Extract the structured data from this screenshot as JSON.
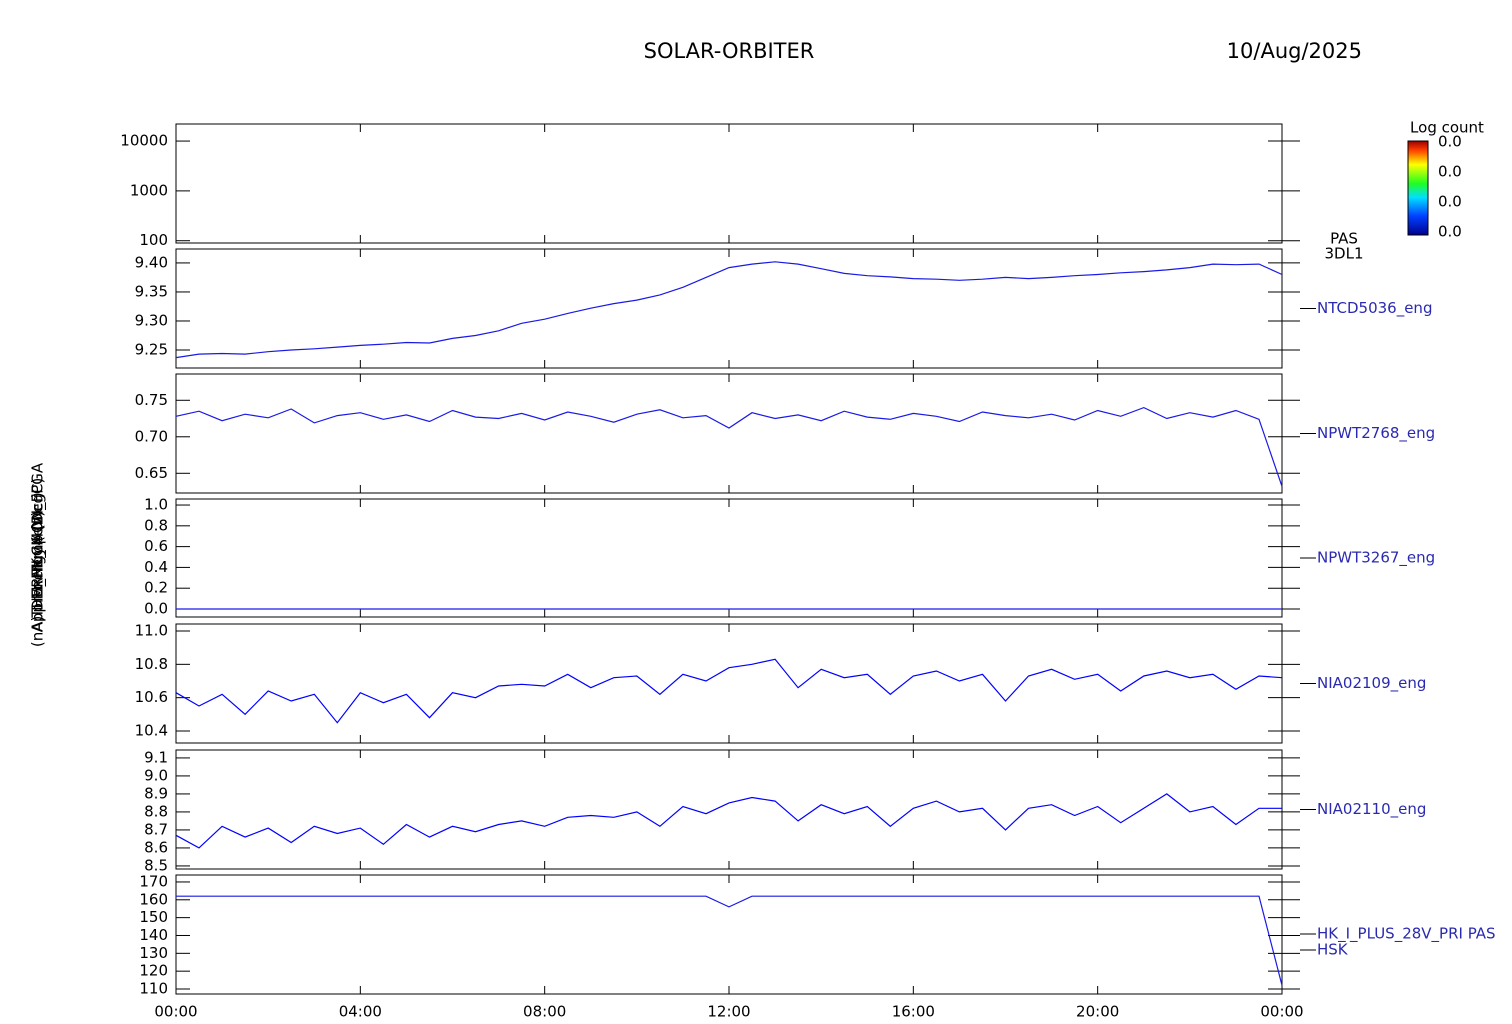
{
  "title": "SOLAR-ORBITER",
  "date": "10/Aug/2025",
  "chart_data": [
    {
      "type": "spectrogram",
      "log_y": true,
      "ylim": [
        90,
        22000
      ],
      "yticks": [
        100,
        1000,
        10000
      ],
      "ylabel": "Energy (eV)",
      "labels": [
        "PAS",
        "3DL1"
      ],
      "colorbar": {
        "label": "Log count",
        "ticks": [
          "0.0",
          "0.0",
          "0.0",
          "0.0"
        ]
      }
    },
    {
      "type": "line",
      "ylim": [
        9.219,
        9.424
      ],
      "ylabel": "Approx Temp (DegC)",
      "yticks": [
        9.25,
        {
          "value": 9.3,
          "label": "9.30"
        },
        9.35,
        {
          "value": 9.4,
          "label": "9.40"
        }
      ],
      "x": [
        0,
        0.5,
        1,
        1.5,
        2,
        2.5,
        3,
        3.5,
        4,
        4.5,
        5,
        5.5,
        6,
        6.5,
        7,
        7.5,
        8,
        8.5,
        9,
        9.5,
        10,
        10.5,
        11,
        11.5,
        12,
        12.5,
        13,
        13.5,
        14,
        14.5,
        15,
        15.5,
        16,
        16.5,
        17,
        17.5,
        18,
        18.5,
        19,
        19.5,
        20,
        20.5,
        21,
        21.5,
        22,
        22.5,
        23,
        23.5,
        24
      ],
      "series": [
        {
          "name": "NTCD5036_eng",
          "color": "#1a1ae6",
          "values": [
            9.237,
            9.243,
            9.244,
            9.243,
            9.247,
            9.25,
            9.252,
            9.255,
            9.258,
            9.26,
            9.263,
            9.262,
            9.27,
            9.275,
            9.283,
            9.296,
            9.303,
            9.313,
            9.322,
            9.33,
            9.336,
            9.345,
            9.358,
            9.375,
            9.392,
            9.398,
            9.402,
            9.398,
            9.39,
            9.382,
            9.378,
            9.376,
            9.373,
            9.372,
            9.37,
            9.372,
            9.375,
            9.373,
            9.375,
            9.378,
            9.38,
            9.383,
            9.385,
            9.388,
            9.392,
            9.398,
            9.397,
            9.398,
            9.38
          ]
        }
      ]
    },
    {
      "type": "line",
      "ylim": [
        0.623,
        0.786
      ],
      "yticks": [
        0.65,
        {
          "value": 0.7,
          "label": "0.70"
        },
        0.75
      ],
      "x": [
        0,
        0.5,
        1,
        1.5,
        2,
        2.5,
        3,
        3.5,
        4,
        4.5,
        5,
        5.5,
        6,
        6.5,
        7,
        7.5,
        8,
        8.5,
        9,
        9.5,
        10,
        10.5,
        11,
        11.5,
        12,
        12.5,
        13,
        13.5,
        14,
        14.5,
        15,
        15.5,
        16,
        16.5,
        17,
        17.5,
        18,
        18.5,
        19,
        19.5,
        20,
        20.5,
        21,
        21.5,
        22,
        22.5,
        23,
        23.5,
        24
      ],
      "series": [
        {
          "name": "NPWT2768_eng",
          "color": "#1a1ae6",
          "values": [
            0.728,
            0.735,
            0.722,
            0.731,
            0.726,
            0.738,
            0.719,
            0.729,
            0.733,
            0.724,
            0.73,
            0.721,
            0.736,
            0.727,
            0.725,
            0.732,
            0.723,
            0.734,
            0.728,
            0.72,
            0.731,
            0.737,
            0.726,
            0.729,
            0.712,
            0.733,
            0.725,
            0.73,
            0.722,
            0.735,
            0.727,
            0.724,
            0.732,
            0.728,
            0.721,
            0.734,
            0.729,
            0.726,
            0.731,
            0.723,
            0.736,
            0.728,
            0.74,
            0.725,
            0.733,
            0.727,
            0.736,
            0.724,
            0.632
          ]
        }
      ]
    },
    {
      "type": "line",
      "ylim": [
        -0.077,
        1.058
      ],
      "yticks": [
        {
          "value": 0,
          "label": "0.0"
        },
        0.2,
        0.4,
        0.6,
        0.8,
        {
          "value": 1,
          "label": "1.0"
        }
      ],
      "x": [
        0,
        0.5,
        1,
        1.5,
        2,
        2.5,
        3,
        3.5,
        4,
        4.5,
        5,
        5.5,
        6,
        6.5,
        7,
        7.5,
        8,
        8.5,
        9,
        9.5,
        10,
        10.5,
        11,
        11.5,
        12,
        12.5,
        13,
        13.5,
        14,
        14.5,
        15,
        15.5,
        16,
        16.5,
        17,
        17.5,
        18,
        18.5,
        19,
        19.5,
        20,
        20.5,
        21,
        21.5,
        22,
        22.5,
        23,
        23.5,
        24
      ],
      "series": [
        {
          "name": "NPWT3267_eng",
          "color": "#1a1ae6",
          "values": [
            0,
            0,
            0,
            0,
            0,
            0,
            0,
            0,
            0,
            0,
            0,
            0,
            0,
            0,
            0,
            0,
            0,
            0,
            0,
            0,
            0,
            0,
            0,
            0,
            0,
            0,
            0,
            0,
            0,
            0,
            0,
            0,
            0,
            0,
            0,
            0,
            0,
            0,
            0,
            0,
            0,
            0,
            0,
            0,
            0,
            0,
            0,
            0,
            0
          ]
        }
      ]
    },
    {
      "type": "line",
      "ylim": [
        10.328,
        11.042
      ],
      "ylabel": "THERMLC4 (n.c.)",
      "yticks": [
        10.4,
        10.6,
        10.8,
        {
          "value": 11,
          "label": "11.0"
        }
      ],
      "x": [
        0,
        0.5,
        1,
        1.5,
        2,
        2.5,
        3,
        3.5,
        4,
        4.5,
        5,
        5.5,
        6,
        6.5,
        7,
        7.5,
        8,
        8.5,
        9,
        9.5,
        10,
        10.5,
        11,
        11.5,
        12,
        12.5,
        13,
        13.5,
        14,
        14.5,
        15,
        15.5,
        16,
        16.5,
        17,
        17.5,
        18,
        18.5,
        19,
        19.5,
        20,
        20.5,
        21,
        21.5,
        22,
        22.5,
        23,
        23.5,
        24
      ],
      "series": [
        {
          "name": "NIA02109_eng",
          "color": "#0000ff",
          "values": [
            10.63,
            10.55,
            10.62,
            10.5,
            10.64,
            10.58,
            10.62,
            10.45,
            10.63,
            10.57,
            10.62,
            10.48,
            10.63,
            10.6,
            10.67,
            10.68,
            10.67,
            10.74,
            10.66,
            10.72,
            10.73,
            10.62,
            10.74,
            10.7,
            10.78,
            10.8,
            10.83,
            10.66,
            10.77,
            10.72,
            10.74,
            10.62,
            10.73,
            10.76,
            10.7,
            10.74,
            10.58,
            10.73,
            10.77,
            10.71,
            10.74,
            10.64,
            10.73,
            10.76,
            10.72,
            10.74,
            10.65,
            10.73,
            10.72
          ]
        }
      ]
    },
    {
      "type": "line",
      "ylim": [
        8.483,
        9.144
      ],
      "yticks": [
        8.5,
        8.6,
        8.7,
        8.8,
        8.9,
        {
          "value": 9,
          "label": "9.0"
        },
        9.1
      ],
      "x": [
        0,
        0.5,
        1,
        1.5,
        2,
        2.5,
        3,
        3.5,
        4,
        4.5,
        5,
        5.5,
        6,
        6.5,
        7,
        7.5,
        8,
        8.5,
        9,
        9.5,
        10,
        10.5,
        11,
        11.5,
        12,
        12.5,
        13,
        13.5,
        14,
        14.5,
        15,
        15.5,
        16,
        16.5,
        17,
        17.5,
        18,
        18.5,
        19,
        19.5,
        20,
        20.5,
        21,
        21.5,
        22,
        22.5,
        23,
        23.5,
        24
      ],
      "series": [
        {
          "name": "NIA02110_eng",
          "color": "#0000ff",
          "values": [
            8.67,
            8.6,
            8.72,
            8.66,
            8.71,
            8.63,
            8.72,
            8.68,
            8.71,
            8.62,
            8.73,
            8.66,
            8.72,
            8.69,
            8.73,
            8.75,
            8.72,
            8.77,
            8.78,
            8.77,
            8.8,
            8.72,
            8.83,
            8.79,
            8.85,
            8.88,
            8.86,
            8.75,
            8.84,
            8.79,
            8.83,
            8.72,
            8.82,
            8.86,
            8.8,
            8.82,
            8.7,
            8.82,
            8.84,
            8.78,
            8.83,
            8.74,
            8.82,
            8.9,
            8.8,
            8.83,
            8.73,
            8.82,
            8.82
          ]
        }
      ]
    },
    {
      "type": "line",
      "ylim": [
        107.2,
        173.9
      ],
      "ylabel": "(nA) DM_HK_IMON_FPGA",
      "yticks": [
        110,
        120,
        130,
        140,
        150,
        160,
        170
      ],
      "labels": [
        "HSK"
      ],
      "xlim": [
        0,
        24
      ],
      "xticks": [
        {
          "value": 0,
          "label": "00:00"
        },
        {
          "value": 4,
          "label": "04:00"
        },
        {
          "value": 8,
          "label": "08:00"
        },
        {
          "value": 12,
          "label": "12:00"
        },
        {
          "value": 16,
          "label": "16:00"
        },
        {
          "value": 20,
          "label": "20:00"
        },
        {
          "value": 24,
          "label": "00:00"
        }
      ],
      "x": [
        0,
        0.5,
        1,
        1.5,
        2,
        2.5,
        3,
        3.5,
        4,
        4.5,
        5,
        5.5,
        6,
        6.5,
        7,
        7.5,
        8,
        8.5,
        9,
        9.5,
        10,
        10.5,
        11,
        11.5,
        12,
        12.5,
        13,
        13.5,
        14,
        14.5,
        15,
        15.5,
        16,
        16.5,
        17,
        17.5,
        18,
        18.5,
        19,
        19.5,
        20,
        20.5,
        21,
        21.5,
        22,
        22.5,
        23,
        23.5,
        24
      ],
      "series": [
        {
          "name": "HK_I_PLUS_28V_PRI PAS",
          "color": "#1a1ae6",
          "values": [
            162,
            162,
            162,
            162,
            162,
            162,
            162,
            162,
            162,
            162,
            162,
            162,
            162,
            162,
            162,
            162,
            162,
            162,
            162,
            162,
            162,
            162,
            162,
            162,
            156,
            162,
            162,
            162,
            162,
            162,
            162,
            162,
            162,
            162,
            162,
            162,
            162,
            162,
            162,
            162,
            162,
            162,
            162,
            162,
            162,
            162,
            162,
            162,
            112
          ]
        }
      ]
    }
  ]
}
